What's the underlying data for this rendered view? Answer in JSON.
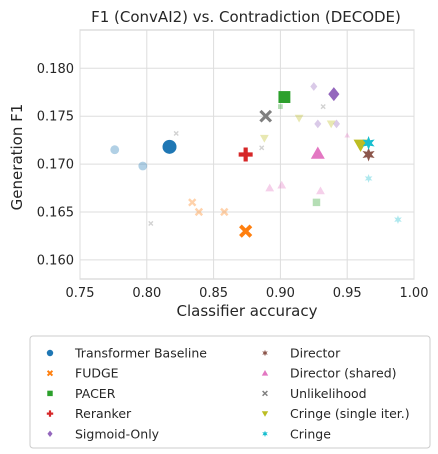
{
  "chart_data": {
    "type": "scatter",
    "title": "F1 (ConvAI2) vs. Contradiction (DECODE)",
    "xlabel": "Classifier accuracy",
    "ylabel": "Generation F1",
    "xlim": [
      0.75,
      1.0
    ],
    "ylim": [
      0.158,
      0.184
    ],
    "xticks": [
      "0.75",
      "0.80",
      "0.85",
      "0.90",
      "0.95",
      "1.00"
    ],
    "yticks": [
      "0.160",
      "0.165",
      "0.170",
      "0.175",
      "0.180"
    ],
    "grid": true,
    "legend_position": "bottom",
    "series": [
      {
        "name": "Transformer Baseline",
        "color": "#1f77b4",
        "marker": "circle",
        "points": [
          {
            "x": 0.776,
            "y": 0.1715,
            "size": "small",
            "faded": true
          },
          {
            "x": 0.797,
            "y": 0.1698,
            "size": "small",
            "faded": true
          },
          {
            "x": 0.817,
            "y": 0.1718,
            "size": "large",
            "faded": false
          }
        ]
      },
      {
        "name": "FUDGE",
        "color": "#ff7f0e",
        "marker": "x",
        "points": [
          {
            "x": 0.834,
            "y": 0.166,
            "size": "small",
            "faded": true
          },
          {
            "x": 0.839,
            "y": 0.165,
            "size": "small",
            "faded": true
          },
          {
            "x": 0.858,
            "y": 0.165,
            "size": "small",
            "faded": true
          },
          {
            "x": 0.874,
            "y": 0.163,
            "size": "large",
            "faded": false
          }
        ]
      },
      {
        "name": "PACER",
        "color": "#2ca02c",
        "marker": "square",
        "points": [
          {
            "x": 0.9,
            "y": 0.176,
            "size": "tiny",
            "faded": true
          },
          {
            "x": 0.927,
            "y": 0.166,
            "size": "small",
            "faded": true
          },
          {
            "x": 0.903,
            "y": 0.177,
            "size": "large",
            "faded": false
          }
        ]
      },
      {
        "name": "Reranker",
        "color": "#d62728",
        "marker": "plus",
        "points": [
          {
            "x": 0.874,
            "y": 0.171,
            "size": "large",
            "faded": false
          }
        ]
      },
      {
        "name": "Sigmoid-Only",
        "color": "#9467bd",
        "marker": "diamond",
        "points": [
          {
            "x": 0.925,
            "y": 0.1781,
            "size": "small",
            "faded": true
          },
          {
            "x": 0.928,
            "y": 0.1742,
            "size": "small",
            "faded": true
          },
          {
            "x": 0.942,
            "y": 0.1742,
            "size": "small",
            "faded": true
          },
          {
            "x": 0.94,
            "y": 0.1773,
            "size": "large",
            "faded": false
          }
        ]
      },
      {
        "name": "Director",
        "color": "#8c564b",
        "marker": "star",
        "points": [
          {
            "x": 0.966,
            "y": 0.171,
            "size": "large",
            "faded": false
          }
        ]
      },
      {
        "name": "Director (shared)",
        "color": "#e377c2",
        "marker": "triangle",
        "points": [
          {
            "x": 0.892,
            "y": 0.1675,
            "size": "small",
            "faded": true
          },
          {
            "x": 0.901,
            "y": 0.1678,
            "size": "small",
            "faded": true
          },
          {
            "x": 0.93,
            "y": 0.1672,
            "size": "small",
            "faded": true
          },
          {
            "x": 0.95,
            "y": 0.173,
            "size": "tiny",
            "faded": true
          },
          {
            "x": 0.928,
            "y": 0.1711,
            "size": "large",
            "faded": false
          }
        ]
      },
      {
        "name": "Unlikelihood",
        "color": "#7f7f7f",
        "marker": "xsmall",
        "points": [
          {
            "x": 0.822,
            "y": 0.1732,
            "size": "tiny",
            "faded": true
          },
          {
            "x": 0.803,
            "y": 0.1638,
            "size": "tiny",
            "faded": true
          },
          {
            "x": 0.886,
            "y": 0.1717,
            "size": "tiny",
            "faded": true
          },
          {
            "x": 0.932,
            "y": 0.176,
            "size": "tiny",
            "faded": true
          },
          {
            "x": 0.889,
            "y": 0.175,
            "size": "large",
            "faded": false
          }
        ]
      },
      {
        "name": "Cringe (single iter.)",
        "color": "#bcbd22",
        "marker": "triangle-down",
        "points": [
          {
            "x": 0.888,
            "y": 0.1727,
            "size": "small",
            "faded": true
          },
          {
            "x": 0.914,
            "y": 0.1748,
            "size": "small",
            "faded": true
          },
          {
            "x": 0.938,
            "y": 0.1742,
            "size": "small",
            "faded": true
          },
          {
            "x": 0.96,
            "y": 0.172,
            "size": "large",
            "faded": false
          }
        ]
      },
      {
        "name": "Cringe",
        "color": "#17becf",
        "marker": "star",
        "points": [
          {
            "x": 0.966,
            "y": 0.1685,
            "size": "small",
            "faded": true
          },
          {
            "x": 0.988,
            "y": 0.1642,
            "size": "small",
            "faded": true
          },
          {
            "x": 0.966,
            "y": 0.1722,
            "size": "large",
            "faded": false
          }
        ]
      }
    ]
  }
}
